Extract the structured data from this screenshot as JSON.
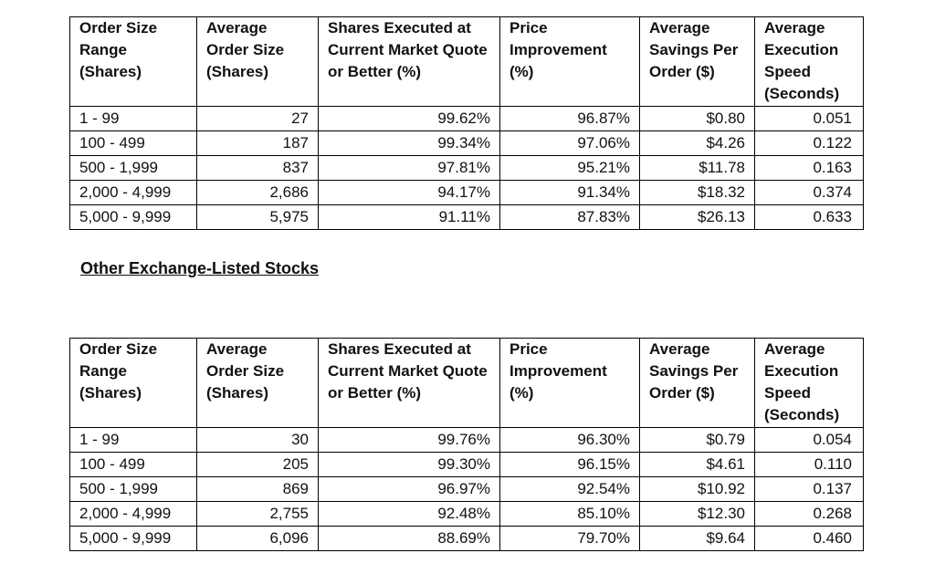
{
  "headers": [
    "Order Size Range (Shares)",
    "Average Order Size (Shares)",
    "Shares Executed at Current Market Quote or Better (%)",
    "Price Improvement (%)",
    "Average Savings Per Order ($)",
    "Average Execution Speed (Seconds)"
  ],
  "section_heading": "Other Exchange-Listed Stocks",
  "tables": [
    {
      "rows": [
        [
          "1 - 99",
          "27",
          "99.62%",
          "96.87%",
          "$0.80",
          "0.051"
        ],
        [
          "100 - 499",
          "187",
          "99.34%",
          "97.06%",
          "$4.26",
          "0.122"
        ],
        [
          "500 - 1,999",
          "837",
          "97.81%",
          "95.21%",
          "$11.78",
          "0.163"
        ],
        [
          "2,000 - 4,999",
          "2,686",
          "94.17%",
          "91.34%",
          "$18.32",
          "0.374"
        ],
        [
          "5,000 - 9,999",
          "5,975",
          "91.11%",
          "87.83%",
          "$26.13",
          "0.633"
        ]
      ]
    },
    {
      "rows": [
        [
          "1 - 99",
          "30",
          "99.76%",
          "96.30%",
          "$0.79",
          "0.054"
        ],
        [
          "100 - 499",
          "205",
          "99.30%",
          "96.15%",
          "$4.61",
          "0.110"
        ],
        [
          "500 - 1,999",
          "869",
          "96.97%",
          "92.54%",
          "$10.92",
          "0.137"
        ],
        [
          "2,000 - 4,999",
          "2,755",
          "92.48%",
          "85.10%",
          "$12.30",
          "0.268"
        ],
        [
          "5,000 - 9,999",
          "6,096",
          "88.69%",
          "79.70%",
          "$9.64",
          "0.460"
        ]
      ]
    }
  ]
}
